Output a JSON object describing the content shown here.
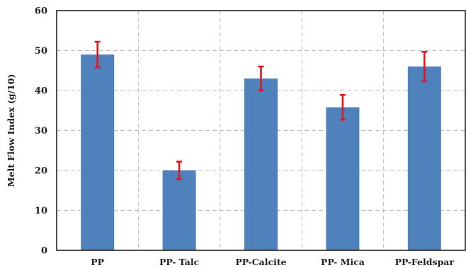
{
  "chart_data": {
    "type": "bar",
    "title": "",
    "xlabel": "",
    "ylabel": "Melt Flow Index (g/10)",
    "ylim": [
      0,
      60
    ],
    "yticks": [
      0,
      10,
      20,
      30,
      40,
      50,
      60
    ],
    "grid": true,
    "legend": "none",
    "categories": [
      "PP",
      "PP- Talc",
      "PP-Calcite",
      "PP- Mica",
      "PP-Feldspar"
    ],
    "series": [
      {
        "values": [
          49,
          20,
          43,
          35.8,
          46
        ],
        "error": [
          3.2,
          2.2,
          3.0,
          3.1,
          3.7
        ],
        "color": "#4f81bd"
      }
    ],
    "error_bar_color": "#e8141b"
  }
}
